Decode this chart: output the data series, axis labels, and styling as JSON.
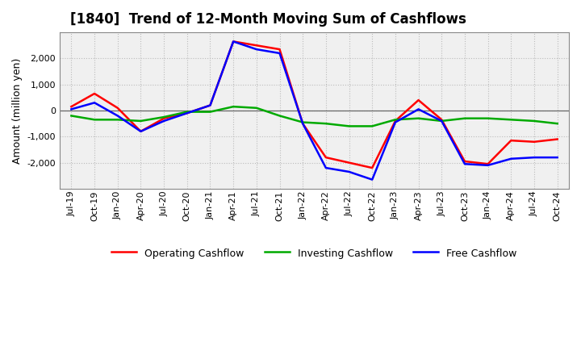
{
  "title": "[1840]  Trend of 12-Month Moving Sum of Cashflows",
  "ylabel": "Amount (million yen)",
  "background_color": "#ffffff",
  "plot_bg_color": "#f0f0f0",
  "grid_color": "#bbbbbb",
  "x_labels": [
    "Jul-19",
    "Oct-19",
    "Jan-20",
    "Apr-20",
    "Jul-20",
    "Oct-20",
    "Jan-21",
    "Apr-21",
    "Jul-21",
    "Oct-21",
    "Jan-22",
    "Apr-22",
    "Jul-22",
    "Oct-22",
    "Jan-23",
    "Apr-23",
    "Jul-23",
    "Oct-23",
    "Jan-24",
    "Apr-24",
    "Jul-24",
    "Oct-24"
  ],
  "operating_cf": [
    150,
    650,
    100,
    -800,
    -300,
    -100,
    200,
    2650,
    2500,
    2350,
    -500,
    -1800,
    -2000,
    -2200,
    -400,
    400,
    -350,
    -1950,
    -2050,
    -1150,
    -1200,
    -1100
  ],
  "investing_cf": [
    -200,
    -350,
    -350,
    -400,
    -250,
    -50,
    -50,
    150,
    100,
    -200,
    -450,
    -500,
    -600,
    -600,
    -350,
    -300,
    -400,
    -300,
    -300,
    -350,
    -400,
    -500
  ],
  "free_cf": [
    50,
    300,
    -200,
    -800,
    -400,
    -100,
    200,
    2650,
    2350,
    2200,
    -500,
    -2200,
    -2350,
    -2650,
    -450,
    50,
    -400,
    -2050,
    -2100,
    -1850,
    -1800,
    -1800
  ],
  "operating_color": "#ff0000",
  "investing_color": "#00aa00",
  "free_color": "#0000ff",
  "ylim": [
    -3000,
    3000
  ],
  "yticks": [
    -2000,
    -1000,
    0,
    1000,
    2000
  ],
  "line_width": 1.8,
  "title_fontsize": 12,
  "ylabel_fontsize": 9,
  "tick_fontsize": 8,
  "legend_fontsize": 9
}
